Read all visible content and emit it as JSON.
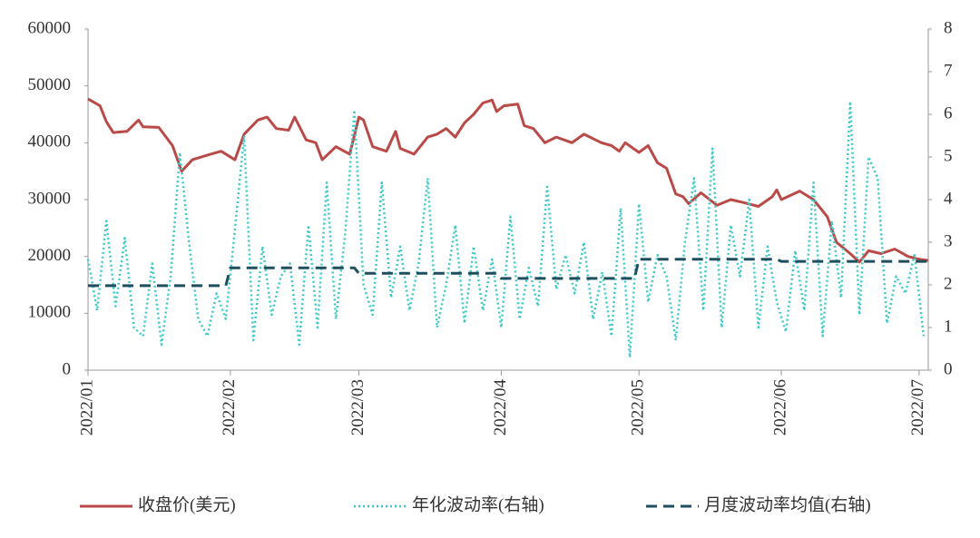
{
  "chart_data": {
    "type": "line",
    "xlim": [
      0,
      183
    ],
    "xticks": [
      {
        "value": 0,
        "label": "2022/01"
      },
      {
        "value": 31,
        "label": "2022/02"
      },
      {
        "value": 59,
        "label": "2022/03"
      },
      {
        "value": 90,
        "label": "2022/04"
      },
      {
        "value": 120,
        "label": "2022/05"
      },
      {
        "value": 151,
        "label": "2022/06"
      },
      {
        "value": 181,
        "label": "2022/07"
      }
    ],
    "ylim": [
      0,
      60000
    ],
    "yticks": [
      0,
      10000,
      20000,
      30000,
      40000,
      50000,
      60000
    ],
    "y2lim": [
      0,
      8
    ],
    "y2ticks": [
      0,
      1,
      2,
      3,
      4,
      5,
      6,
      7,
      8
    ],
    "series": [
      {
        "name": "收盘价(美元)",
        "color": "#b94a48",
        "style": "solid",
        "x": [
          0,
          2.6,
          4,
          5.5,
          8.5,
          11,
          12,
          15.4,
          18.4,
          20.4,
          22.7,
          26.7,
          29,
          32,
          34,
          37,
          39,
          41,
          43.7,
          45,
          47.5,
          49.6,
          51,
          54,
          57,
          59,
          60,
          62,
          65,
          67,
          68,
          71,
          74,
          76,
          78,
          80,
          82,
          84,
          86,
          88,
          89,
          90.6,
          93.6,
          95,
          97,
          99.5,
          102,
          105.4,
          108,
          111.8,
          114,
          115.7,
          117,
          120,
          122,
          124,
          126,
          128,
          129.6,
          130.8,
          133.5,
          137,
          140,
          142.6,
          146,
          149,
          150,
          151,
          155,
          158,
          161,
          163,
          166,
          168,
          170,
          172.7,
          175.7,
          178.6,
          181,
          183
        ],
        "values": [
          47700,
          46500,
          43700,
          41800,
          42000,
          44000,
          42800,
          42700,
          39500,
          35000,
          37000,
          38000,
          38500,
          37000,
          41500,
          44000,
          44500,
          42500,
          42200,
          44500,
          40500,
          40000,
          37000,
          39300,
          38000,
          44500,
          44000,
          39300,
          38500,
          42000,
          39000,
          38000,
          41000,
          41500,
          42500,
          41000,
          43500,
          45000,
          47000,
          47500,
          45500,
          46500,
          46800,
          43000,
          42500,
          40000,
          41000,
          40000,
          41500,
          40000,
          39500,
          38500,
          40000,
          38300,
          39500,
          36500,
          35500,
          31000,
          30500,
          29300,
          31200,
          29000,
          30000,
          29500,
          28800,
          30500,
          31700,
          30000,
          31500,
          30000,
          27000,
          22500,
          20500,
          19000,
          21000,
          20500,
          21300,
          20000,
          19500,
          19300
        ]
      },
      {
        "name": "年化波动率(右轴)",
        "color": "#3cc8c8",
        "style": "dotted",
        "axis": "y2",
        "x": [
          0,
          2,
          4,
          6,
          8,
          10,
          12,
          14,
          16,
          18,
          20,
          22,
          24,
          26,
          28,
          30,
          32,
          34,
          36,
          38,
          40,
          42,
          44,
          46,
          48,
          50,
          52,
          54,
          56,
          58,
          60,
          62,
          64,
          66,
          68,
          70,
          72,
          74,
          76,
          78,
          80,
          82,
          84,
          86,
          88,
          90,
          92,
          94,
          96,
          98,
          100,
          102,
          104,
          106,
          108,
          110,
          112,
          114,
          116,
          118,
          120,
          122,
          124,
          126,
          128,
          130,
          132,
          134,
          136,
          138,
          140,
          142,
          144,
          146,
          148,
          150,
          152,
          154,
          156,
          158,
          160,
          162,
          164,
          166,
          168,
          170,
          172,
          174,
          176,
          178,
          180,
          182
        ],
        "values": [
          2.6,
          1.4,
          3.5,
          1.5,
          3.1,
          1.0,
          0.8,
          2.5,
          0.6,
          2.2,
          5.1,
          3.0,
          1.2,
          0.8,
          1.8,
          1.2,
          3.3,
          5.5,
          0.7,
          2.9,
          1.3,
          2.2,
          2.5,
          0.6,
          3.4,
          1.0,
          4.4,
          1.2,
          3.2,
          6.1,
          2.0,
          1.3,
          4.4,
          1.7,
          2.9,
          1.4,
          2.5,
          4.5,
          1.0,
          2.0,
          3.4,
          1.1,
          2.9,
          1.4,
          2.6,
          1.0,
          3.6,
          1.2,
          2.4,
          1.5,
          4.3,
          1.9,
          2.7,
          1.8,
          3.0,
          1.2,
          2.3,
          0.8,
          3.8,
          0.3,
          3.9,
          1.6,
          2.7,
          2.2,
          0.7,
          3.0,
          4.5,
          1.4,
          5.2,
          1.0,
          3.4,
          2.2,
          4.0,
          1.0,
          2.9,
          1.6,
          0.9,
          2.8,
          1.4,
          4.4,
          0.8,
          3.5,
          1.7,
          6.3,
          1.3,
          5.0,
          4.5,
          1.1,
          2.2,
          1.8,
          2.7,
          0.8
        ]
      },
      {
        "name": "月度波动率均值(右轴)",
        "color": "#1f4e5f",
        "style": "dashed",
        "axis": "y2",
        "x": [
          0,
          30,
          31,
          58,
          59,
          89,
          90,
          119,
          120,
          150,
          151,
          183
        ],
        "values": [
          1.98,
          1.98,
          2.4,
          2.4,
          2.27,
          2.27,
          2.15,
          2.15,
          2.6,
          2.6,
          2.55,
          2.55
        ]
      }
    ]
  }
}
